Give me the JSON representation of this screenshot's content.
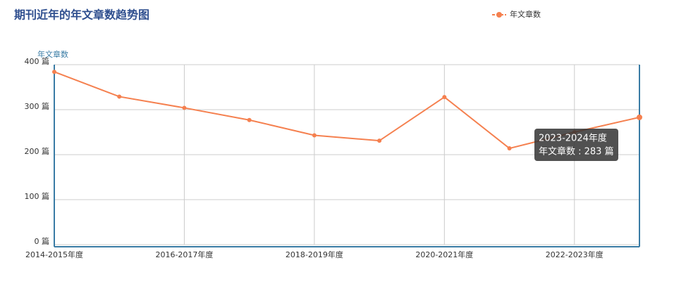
{
  "chart_data": {
    "type": "line",
    "title": "期刊近年的年文章数趋势图",
    "y_label": "年文章数",
    "categories": [
      "2014-2015年度",
      null,
      "2016-2017年度",
      null,
      "2018-2019年度",
      null,
      "2020-2021年度",
      null,
      "2022-2023年度",
      "2023-2024年度"
    ],
    "series": [
      {
        "name": "年文章数",
        "color": "#f5804f",
        "values": [
          384,
          329,
          304,
          277,
          243,
          231,
          328,
          214,
          250,
          283
        ]
      }
    ],
    "ylim": [
      0,
      400
    ],
    "yticks": [
      {
        "value": 0,
        "label": "0 篇"
      },
      {
        "value": 100,
        "label": "100 篇"
      },
      {
        "value": 200,
        "label": "200 篇"
      },
      {
        "value": 300,
        "label": "300 篇"
      },
      {
        "value": 400,
        "label": "400 篇"
      }
    ],
    "grid": true,
    "legend": "top-right",
    "tooltip": "年文章数 : 283 篇"
  }
}
